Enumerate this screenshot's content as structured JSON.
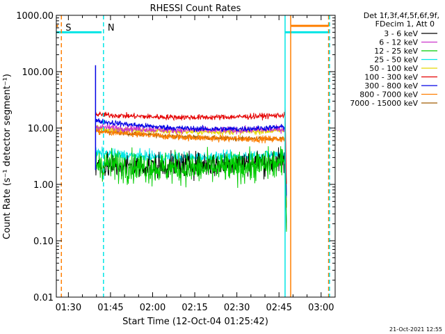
{
  "chart_data": {
    "type": "line",
    "title": "RHESSI Count Rates",
    "xlabel": "Start Time (12-Oct-04 01:25:42)",
    "ylabel": "Count Rate (s⁻¹ detector segment⁻¹)",
    "yscale": "log",
    "ylim": [
      0.01,
      1000
    ],
    "xlim": [
      "01:25:42",
      "03:05:00"
    ],
    "x_ticks": [
      "01:30",
      "01:45",
      "02:00",
      "02:15",
      "02:30",
      "02:45",
      "03:00"
    ],
    "y_ticks": [
      "0.01",
      "0.10",
      "1.00",
      "10.00",
      "100.00",
      "1000.00"
    ],
    "legend_header": [
      "Det 1f,3f,4f,5f,6f,9f,",
      "FDecim 1, Att 0"
    ],
    "legend_position": "top-right outside",
    "data_start": "01:39:40",
    "data_end": "02:47:10",
    "series": [
      {
        "name": "3 - 6 keV",
        "color": "#000000",
        "start": 2.1,
        "mid": 2.2,
        "end": 2.6,
        "noise": 0.22
      },
      {
        "name": "6 - 12 keV",
        "color": "#cc33cc",
        "start": 10.5,
        "mid": 9.2,
        "end": 9.6,
        "noise": 0.06
      },
      {
        "name": "12 - 25 keV",
        "color": "#00cc00",
        "start": 2.4,
        "mid": 1.9,
        "end": 2.4,
        "noise": 0.28
      },
      {
        "name": "25 - 50 keV",
        "color": "#00e5e5",
        "start": 3.6,
        "mid": 3.0,
        "end": 3.5,
        "noise": 0.1
      },
      {
        "name": "50 - 100 keV",
        "color": "#e5d800",
        "start": 10.0,
        "mid": 8.6,
        "end": 9.0,
        "noise": 0.05
      },
      {
        "name": "100 - 300 keV",
        "color": "#e50000",
        "start": 17.5,
        "mid": 15.5,
        "end": 17.0,
        "noise": 0.05
      },
      {
        "name": "300 - 800 keV",
        "color": "#0000e5",
        "start": 13.5,
        "mid": 9.8,
        "end": 10.5,
        "noise": 0.05
      },
      {
        "name": "800 - 7000 keV",
        "color": "#ff7f00",
        "start": 8.8,
        "mid": 6.8,
        "end": 6.4,
        "noise": 0.06
      },
      {
        "name": "7000 - 15000 keV",
        "color": "#a05a00",
        "start": 9.0,
        "mid": 6.9,
        "end": 6.5,
        "noise": 0.04
      }
    ],
    "spike": {
      "time": "01:39:40",
      "value": 130
    },
    "markers": [
      {
        "label": "S",
        "color": "#ff7f00",
        "time": "01:27:30",
        "style": "dashed"
      },
      {
        "label": "N",
        "color": "#00e5e5",
        "time": "01:42:30",
        "style": "dashed"
      },
      {
        "label": "",
        "color": "#00e5e5",
        "time": "02:47:10",
        "style": "solid"
      },
      {
        "label": "",
        "color": "#ff7f00",
        "time": "02:49:10",
        "style": "solid"
      },
      {
        "label": "",
        "color": "#ff7f00",
        "time": "03:02:40",
        "style": "dashed"
      },
      {
        "label": "",
        "color": "#00e5e5",
        "time": "03:03:00",
        "style": "dashed"
      }
    ],
    "bars": [
      {
        "color": "#00e5e5",
        "from": "01:25:42",
        "to": "01:41:50",
        "value": 500
      },
      {
        "color": "#ff7f00",
        "from": "01:25:42",
        "to": "01:26:20",
        "value": 650
      },
      {
        "color": "#00e5e5",
        "from": "02:47:10",
        "to": "03:02:40",
        "value": 500
      },
      {
        "color": "#ff7f00",
        "from": "02:49:20",
        "to": "03:02:40",
        "value": 650
      }
    ]
  },
  "footer": {
    "timestamp": "21-Oct-2021 12:55"
  }
}
